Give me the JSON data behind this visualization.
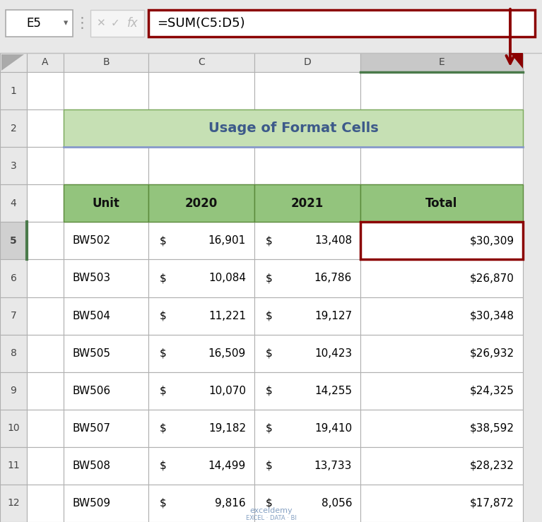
{
  "formula_bar": {
    "cell_ref": "E5",
    "formula": "=SUM(C5:D5)"
  },
  "title": "Usage of Format Cells",
  "title_bg": "#c6e0b4",
  "title_text_color": "#3d5a8a",
  "headers": [
    "Unit",
    "2020",
    "2021",
    "Total"
  ],
  "header_bg": "#93c47d",
  "rows": [
    [
      "BW502",
      "$",
      "16,901",
      "$",
      "13,408",
      "$30,309"
    ],
    [
      "BW503",
      "$",
      "10,084",
      "$",
      "16,786",
      "$26,870"
    ],
    [
      "BW504",
      "$",
      "11,221",
      "$",
      "19,127",
      "$30,348"
    ],
    [
      "BW505",
      "$",
      "16,509",
      "$",
      "10,423",
      "$26,932"
    ],
    [
      "BW506",
      "$",
      "10,070",
      "$",
      "14,255",
      "$24,325"
    ],
    [
      "BW507",
      "$",
      "19,182",
      "$",
      "19,410",
      "$38,592"
    ],
    [
      "BW508",
      "$",
      "14,499",
      "$",
      "13,733",
      "$28,232"
    ],
    [
      "BW509",
      "$",
      "9,816",
      "$",
      "8,056",
      "$17,872"
    ]
  ],
  "highlight_color": "#8b0000",
  "arrow_color": "#8b0000",
  "bg_color": "#e8e8e8",
  "cell_bg": "#ffffff",
  "row_num_bg": "#e8e8e8",
  "row_num_selected_bg": "#d0d0d0",
  "col_header_bg": "#e8e8e8",
  "col_header_selected_bg": "#c8c8c8",
  "grid_color": "#b0b0b0",
  "white": "#ffffff",
  "green_line": "#4a7a4a",
  "blue_line": "#8899cc"
}
